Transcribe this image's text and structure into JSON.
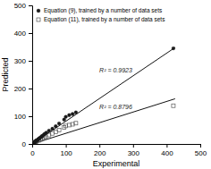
{
  "chart_data": {
    "type": "scatter",
    "xlabel": "Experimental",
    "ylabel": "Predicted",
    "xlim": [
      0,
      500
    ],
    "ylim": [
      0,
      500
    ],
    "xticks": [
      0,
      100,
      200,
      300,
      400,
      500
    ],
    "yticks": [
      0,
      100,
      200,
      300,
      400,
      500
    ],
    "legend": "upper left",
    "annotations": [
      "R² = 0.9923",
      "R² = 0.8796"
    ],
    "series": [
      {
        "name": "Equation (9), trained by a number of data sets",
        "type": "scatter",
        "marker": "circle",
        "color": "#1a1a1a",
        "x": [
          5,
          7,
          8,
          10,
          12,
          14,
          16,
          18,
          20,
          22,
          25,
          28,
          30,
          35,
          38,
          42,
          50,
          60,
          70,
          80,
          95,
          100,
          110,
          120,
          130,
          420
        ],
        "values": [
          4,
          6,
          7,
          9,
          11,
          13,
          15,
          17,
          19,
          21,
          24,
          27,
          29,
          34,
          37,
          41,
          48,
          55,
          64,
          74,
          88,
          98,
          104,
          108,
          114,
          345
        ]
      },
      {
        "name": "Equation (11), trained by a number of data sets",
        "type": "scatter",
        "marker": "open-square",
        "color": "#555555",
        "x": [
          5,
          8,
          10,
          12,
          15,
          20,
          25,
          30,
          35,
          40,
          50,
          60,
          70,
          80,
          95,
          100,
          110,
          120,
          130,
          420
        ],
        "values": [
          4,
          6,
          7,
          9,
          11,
          13,
          16,
          19,
          22,
          26,
          32,
          38,
          44,
          50,
          60,
          65,
          68,
          71,
          75,
          138
        ]
      },
      {
        "type": "line",
        "color": "#111111",
        "x": [
          0,
          425
        ],
        "values": [
          0,
          348
        ]
      },
      {
        "type": "line",
        "color": "#111111",
        "x": [
          0,
          425
        ],
        "values": [
          0,
          163
        ]
      }
    ]
  }
}
